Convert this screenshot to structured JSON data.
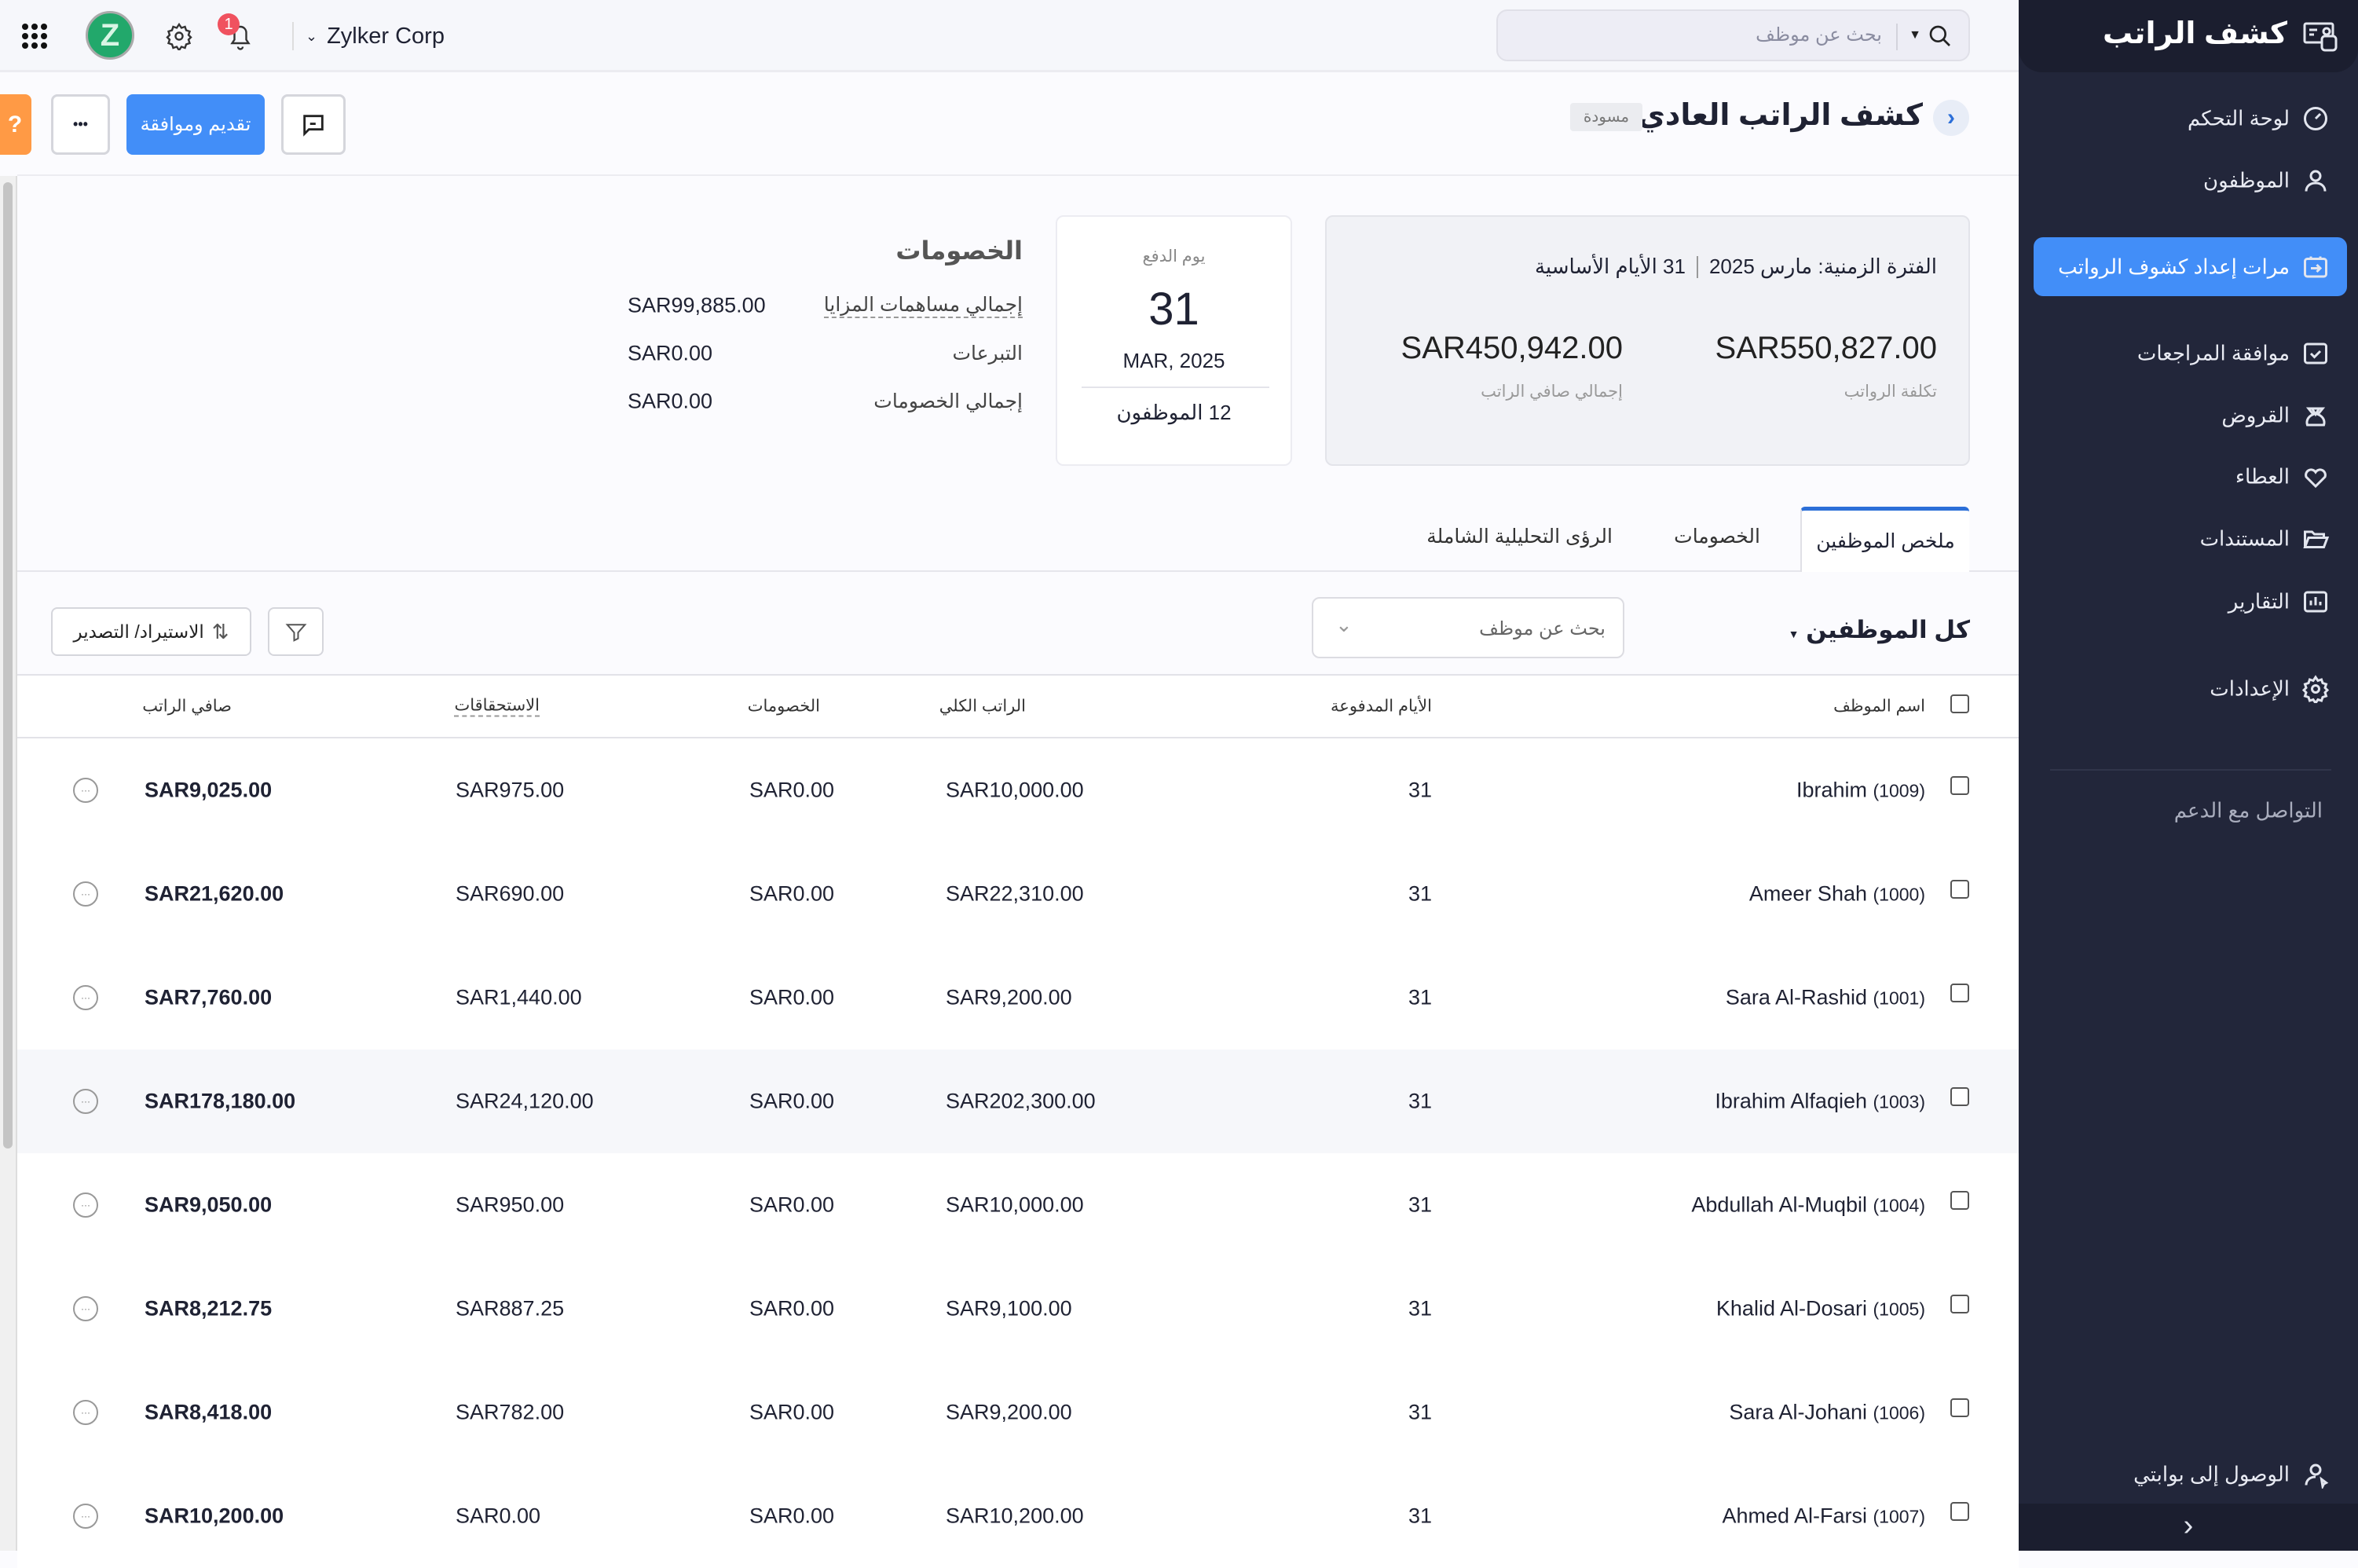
{
  "topbar": {
    "org_name": "Zylker Corp",
    "avatar_letter": "Z",
    "notification_count": "1",
    "search_placeholder": "بحث عن موظف"
  },
  "header": {
    "title": "كشف الراتب العادي",
    "status_badge": "مسودة",
    "submit_button": "تقديم وموافقة",
    "help_label": "?",
    "more_label": "•••"
  },
  "sidebar": {
    "app_title": "كشف الراتب",
    "items": [
      {
        "label": "لوحة التحكم",
        "icon": "dashboard-icon"
      },
      {
        "label": "الموظفون",
        "icon": "user-icon"
      },
      {
        "label": "مرات إعداد كشوف الرواتب",
        "icon": "payrun-icon",
        "active": true
      },
      {
        "label": "موافقة المراجعات",
        "icon": "approval-icon"
      },
      {
        "label": "القروض",
        "icon": "loan-bag-icon"
      },
      {
        "label": "العطاء",
        "icon": "heart-icon"
      },
      {
        "label": "المستندات",
        "icon": "folder-icon"
      },
      {
        "label": "التقارير",
        "icon": "chart-icon"
      },
      {
        "label": "الإعدادات",
        "icon": "gear-icon"
      }
    ],
    "support": "التواصل مع الدعم",
    "portal": "الوصول إلى بوابتي"
  },
  "summary": {
    "period_label": "الفترة الزمنية: مارس 2025",
    "base_days": "31 الأيام الأساسية",
    "payroll_cost": "SAR550,827.00",
    "payroll_cost_label": "تكلفة الرواتب",
    "net_pay": "SAR450,942.00",
    "net_pay_label": "إجمالي صافي الراتب"
  },
  "payday": {
    "label": "يوم الدفع",
    "day": "31",
    "month": "MAR, 2025",
    "employees": "12 الموظفون"
  },
  "deductions": {
    "title": "الخصومات",
    "rows": [
      {
        "label": "إجمالي مساهمات المزايا",
        "value": "SAR99,885.00"
      },
      {
        "label": "التبرعات",
        "value": "SAR0.00"
      },
      {
        "label": "إجمالي الخصومات",
        "value": "SAR0.00"
      }
    ]
  },
  "tabs": [
    {
      "label": "ملخص الموظفين",
      "active": true
    },
    {
      "label": "الخصومات"
    },
    {
      "label": "الرؤى التحليلية الشاملة"
    }
  ],
  "toolbar": {
    "filter_label": "كل الموظفين",
    "search_placeholder": "بحث عن موظف",
    "import_export": "الاستيراد/ التصدير"
  },
  "table": {
    "headers": {
      "name": "اسم الموظف",
      "days": "الأيام المدفوعة",
      "gross": "الراتب الكلي",
      "deductions": "الخصومات",
      "earnings": "الاستحقاقات",
      "net": "صافي الراتب"
    },
    "rows": [
      {
        "name": "Ibrahim",
        "id": "(1009)",
        "days": "31",
        "gross": "SAR10,000.00",
        "deductions": "SAR0.00",
        "earnings": "SAR975.00",
        "net": "SAR9,025.00"
      },
      {
        "name": "Ameer Shah",
        "id": "(1000)",
        "days": "31",
        "gross": "SAR22,310.00",
        "deductions": "SAR0.00",
        "earnings": "SAR690.00",
        "net": "SAR21,620.00"
      },
      {
        "name": "Sara Al-Rashid",
        "id": "(1001)",
        "days": "31",
        "gross": "SAR9,200.00",
        "deductions": "SAR0.00",
        "earnings": "SAR1,440.00",
        "net": "SAR7,760.00"
      },
      {
        "name": "Ibrahim Alfaqieh",
        "id": "(1003)",
        "days": "31",
        "gross": "SAR202,300.00",
        "deductions": "SAR0.00",
        "earnings": "SAR24,120.00",
        "net": "SAR178,180.00"
      },
      {
        "name": "Abdullah Al-Muqbil",
        "id": "(1004)",
        "days": "31",
        "gross": "SAR10,000.00",
        "deductions": "SAR0.00",
        "earnings": "SAR950.00",
        "net": "SAR9,050.00"
      },
      {
        "name": "Khalid Al-Dosari",
        "id": "(1005)",
        "days": "31",
        "gross": "SAR9,100.00",
        "deductions": "SAR0.00",
        "earnings": "SAR887.25",
        "net": "SAR8,212.75"
      },
      {
        "name": "Sara Al-Johani",
        "id": "(1006)",
        "days": "31",
        "gross": "SAR9,200.00",
        "deductions": "SAR0.00",
        "earnings": "SAR782.00",
        "net": "SAR8,418.00"
      },
      {
        "name": "Ahmed Al-Farsi",
        "id": "(1007)",
        "days": "31",
        "gross": "SAR10,200.00",
        "deductions": "SAR0.00",
        "earnings": "SAR0.00",
        "net": "SAR10,200.00"
      }
    ]
  },
  "colors": {
    "accent": "#428ef8",
    "sidebar": "#22263a",
    "help": "#ff9a45",
    "badge": "#f0525f"
  }
}
